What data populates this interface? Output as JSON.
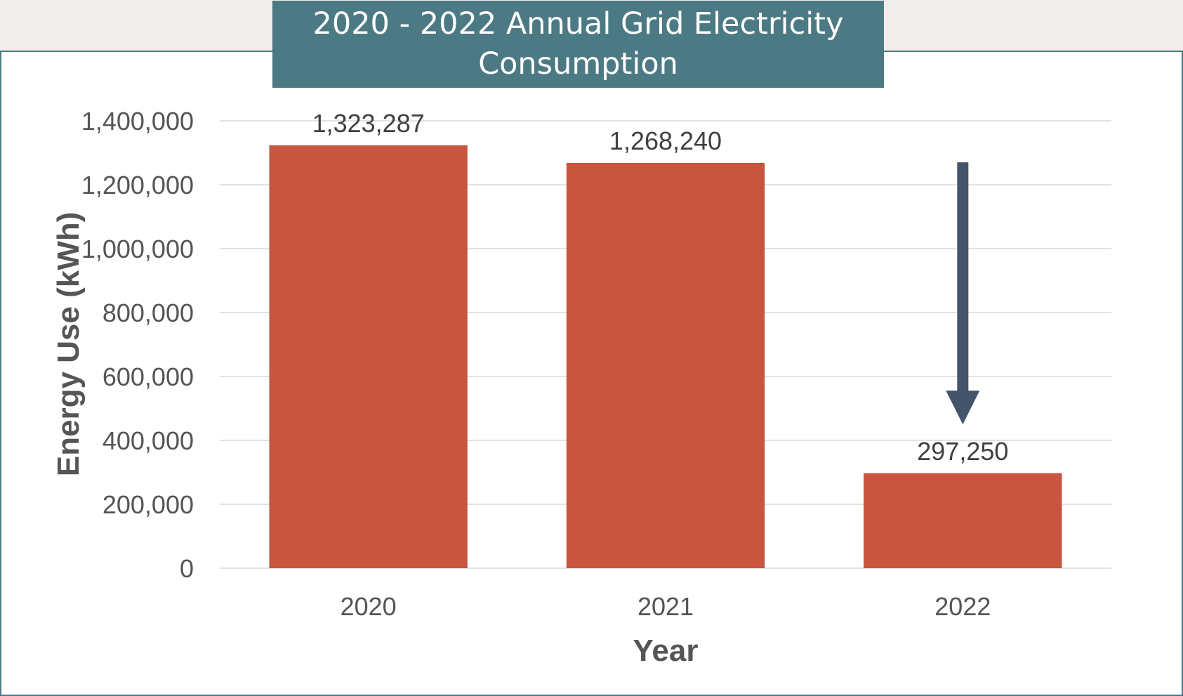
{
  "colors": {
    "bar": "#c8553d",
    "arrow": "#44546a",
    "title_bg": "#4c7a84",
    "grid": "#d9d9d9",
    "frame_bg": "#ffffff",
    "page_bg": "#f1edea"
  },
  "chart_data": {
    "type": "bar",
    "title": "2020 - 2022 Annual Grid Electricity Consumption",
    "xlabel": "Year",
    "ylabel": "Energy Use (kWh)",
    "categories": [
      "2020",
      "2021",
      "2022"
    ],
    "values": [
      1323287,
      1268240,
      297250
    ],
    "data_labels": [
      "1,323,287",
      "1,268,240",
      "297,250"
    ],
    "ylim": [
      0,
      1400000
    ],
    "yticks": [
      0,
      200000,
      400000,
      600000,
      800000,
      1000000,
      1200000,
      1400000
    ],
    "ytick_labels": [
      "0",
      "200,000",
      "400,000",
      "600,000",
      "800,000",
      "1,000,000",
      "1,200,000",
      "1,400,000"
    ],
    "grid": true,
    "legend": "none",
    "annotation": {
      "type": "down-arrow",
      "category": "2022",
      "from_value": 1270000,
      "to_value": 450000
    }
  }
}
